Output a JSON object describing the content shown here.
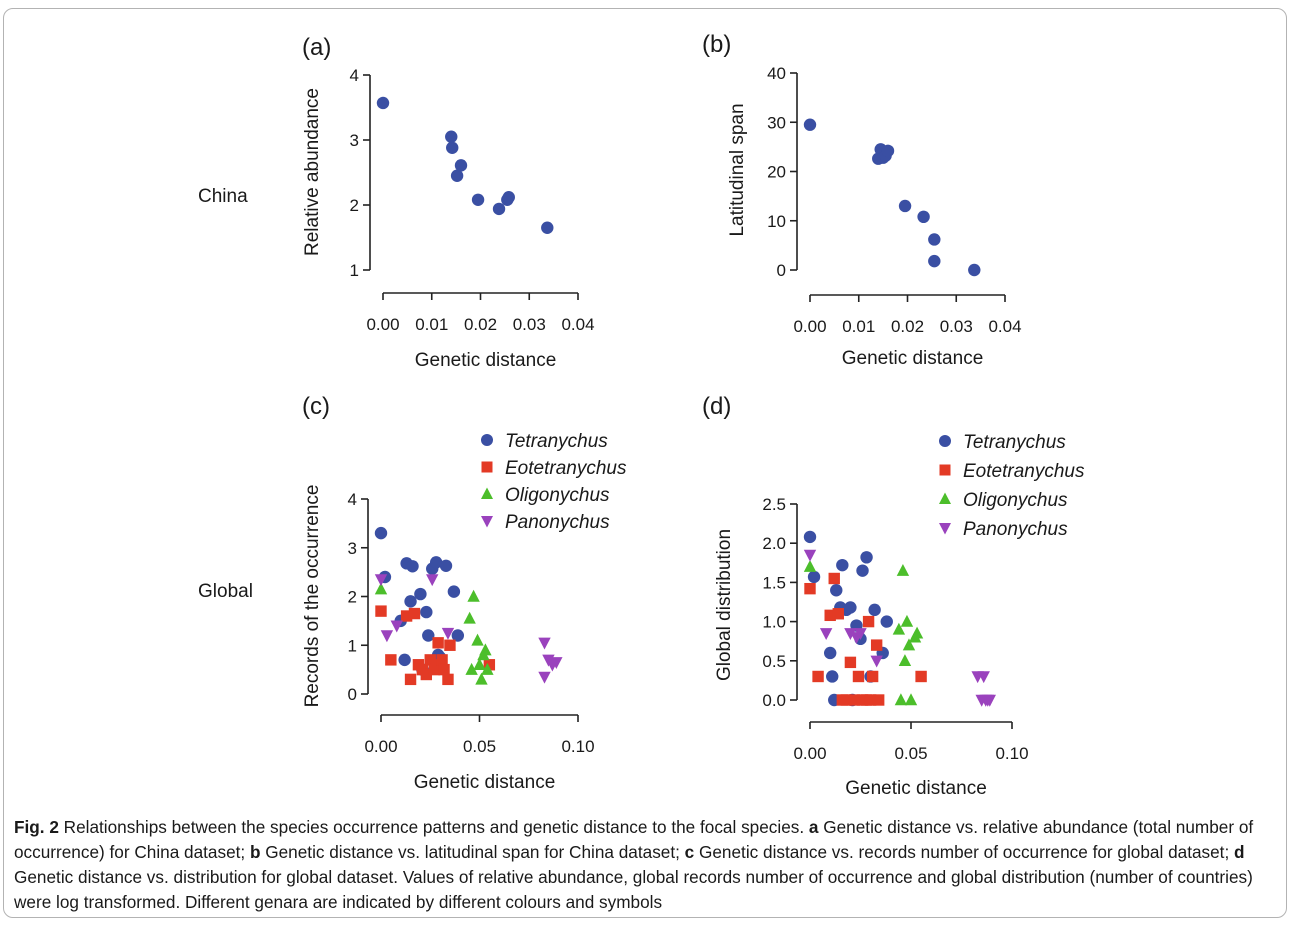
{
  "colors": {
    "tetranychus": "#3a4fa3",
    "eotetranychus": "#e33a25",
    "oligonychus": "#4cbe2b",
    "panonychus": "#9a42bd"
  },
  "row_labels": {
    "top": "China",
    "bottom": "Global"
  },
  "caption": {
    "fig_label": "Fig. 2",
    "parts": [
      {
        "b": false,
        "t": " Relationships between the species occurrence patterns and genetic distance to the focal species. "
      },
      {
        "b": true,
        "t": "a"
      },
      {
        "b": false,
        "t": " Genetic distance vs. relative abundance (total number of occurrence) for China dataset; "
      },
      {
        "b": true,
        "t": "b"
      },
      {
        "b": false,
        "t": " Genetic distance vs. latitudinal span for China dataset; "
      },
      {
        "b": true,
        "t": "c"
      },
      {
        "b": false,
        "t": " Genetic distance vs. records number of occurrence for global dataset; "
      },
      {
        "b": true,
        "t": "d"
      },
      {
        "b": false,
        "t": " Genetic distance vs. distribution for global dataset. Values of relative abundance, global records number of occurrence and global distribution (number of countries) were log transformed. Different genara are indicated by different colours and symbols"
      }
    ]
  },
  "chart_data": [
    {
      "panel": "(a)",
      "type": "scatter",
      "xlabel": "Genetic distance",
      "ylabel": "Relative abundance",
      "xlim": [
        0,
        0.04
      ],
      "ylim": [
        1,
        4
      ],
      "xticks": [
        0,
        0.01,
        0.02,
        0.03,
        0.04
      ],
      "xtick_labels": [
        "0.00",
        "0.01",
        "0.02",
        "0.03",
        "0.04"
      ],
      "yticks": [
        1,
        2,
        3,
        4
      ],
      "ytick_labels": [
        "1",
        "2",
        "3",
        "4"
      ],
      "series": [
        {
          "color": "tetranychus",
          "marker": "circle",
          "points": [
            [
              0,
              3.57
            ],
            [
              0.014,
              3.05
            ],
            [
              0.0142,
              2.88
            ],
            [
              0.0152,
              2.45
            ],
            [
              0.016,
              2.61
            ],
            [
              0.0195,
              2.08
            ],
            [
              0.0238,
              1.94
            ],
            [
              0.0255,
              2.08
            ],
            [
              0.0258,
              2.12
            ],
            [
              0.0337,
              1.65
            ]
          ]
        }
      ]
    },
    {
      "panel": "(b)",
      "type": "scatter",
      "xlabel": "Genetic distance",
      "ylabel": "Latitudinal span",
      "xlim": [
        0,
        0.04
      ],
      "ylim": [
        0,
        40
      ],
      "xticks": [
        0,
        0.01,
        0.02,
        0.03,
        0.04
      ],
      "xtick_labels": [
        "0.00",
        "0.01",
        "0.02",
        "0.03",
        "0.04"
      ],
      "yticks": [
        0,
        10,
        20,
        30,
        40
      ],
      "ytick_labels": [
        "0",
        "10",
        "20",
        "30",
        "40"
      ],
      "series": [
        {
          "color": "tetranychus",
          "marker": "circle",
          "points": [
            [
              0,
              29.5
            ],
            [
              0.014,
              22.6
            ],
            [
              0.0145,
              24.5
            ],
            [
              0.015,
              22.8
            ],
            [
              0.0155,
              23.2
            ],
            [
              0.016,
              24.2
            ],
            [
              0.0195,
              13
            ],
            [
              0.0233,
              10.8
            ],
            [
              0.0255,
              6.2
            ],
            [
              0.0255,
              1.8
            ],
            [
              0.0337,
              0
            ]
          ]
        }
      ]
    },
    {
      "panel": "(c)",
      "type": "scatter",
      "xlabel": "Genetic distance",
      "ylabel": "Records of the occurrence",
      "xlim": [
        0,
        0.1
      ],
      "ylim": [
        0,
        4
      ],
      "xticks": [
        0,
        0.05,
        0.1
      ],
      "xtick_labels": [
        "0.00",
        "0.05",
        "0.10"
      ],
      "yticks": [
        0,
        1,
        2,
        3,
        4
      ],
      "ytick_labels": [
        "0",
        "1",
        "2",
        "3",
        "4"
      ],
      "series": [
        {
          "name": "Tetranychus",
          "color": "tetranychus",
          "marker": "circle",
          "points": [
            [
              0,
              3.3
            ],
            [
              0.002,
              2.4
            ],
            [
              0.01,
              1.5
            ],
            [
              0.012,
              0.7
            ],
            [
              0.013,
              2.68
            ],
            [
              0.015,
              1.9
            ],
            [
              0.016,
              2.62
            ],
            [
              0.02,
              2.05
            ],
            [
              0.021,
              0.5
            ],
            [
              0.023,
              1.68
            ],
            [
              0.024,
              1.2
            ],
            [
              0.026,
              2.57
            ],
            [
              0.028,
              2.7
            ],
            [
              0.029,
              0.8
            ],
            [
              0.03,
              0.75
            ],
            [
              0.033,
              2.63
            ],
            [
              0.037,
              2.1
            ],
            [
              0.039,
              1.2
            ]
          ]
        },
        {
          "name": "Eotetranychus",
          "color": "eotetranychus",
          "marker": "square",
          "points": [
            [
              0,
              1.7
            ],
            [
              0.005,
              0.7
            ],
            [
              0.013,
              1.6
            ],
            [
              0.015,
              0.3
            ],
            [
              0.017,
              1.65
            ],
            [
              0.019,
              0.6
            ],
            [
              0.021,
              0.5
            ],
            [
              0.023,
              0.4
            ],
            [
              0.025,
              0.7
            ],
            [
              0.027,
              0.5
            ],
            [
              0.028,
              0.6
            ],
            [
              0.029,
              1.05
            ],
            [
              0.031,
              0.7
            ],
            [
              0.032,
              0.5
            ],
            [
              0.034,
              0.3
            ],
            [
              0.035,
              1.0
            ],
            [
              0.055,
              0.6
            ]
          ]
        },
        {
          "name": "Oligonychus",
          "color": "oligonychus",
          "marker": "triangle-up",
          "points": [
            [
              0,
              2.15
            ],
            [
              0.045,
              1.55
            ],
            [
              0.046,
              0.5
            ],
            [
              0.047,
              2.0
            ],
            [
              0.049,
              1.1
            ],
            [
              0.05,
              0.6
            ],
            [
              0.051,
              0.3
            ],
            [
              0.052,
              0.8
            ],
            [
              0.053,
              0.9
            ],
            [
              0.054,
              0.5
            ]
          ]
        },
        {
          "name": "Panonychus",
          "color": "panonychus",
          "marker": "triangle-down",
          "points": [
            [
              0,
              2.35
            ],
            [
              0.003,
              1.2
            ],
            [
              0.008,
              1.4
            ],
            [
              0.026,
              2.35
            ],
            [
              0.034,
              1.25
            ],
            [
              0.083,
              1.05
            ],
            [
              0.083,
              0.35
            ],
            [
              0.085,
              0.7
            ],
            [
              0.087,
              0.6
            ],
            [
              0.089,
              0.65
            ]
          ]
        }
      ]
    },
    {
      "panel": "(d)",
      "type": "scatter",
      "xlabel": "Genetic distance",
      "ylabel": "Global distribution",
      "xlim": [
        0,
        0.1
      ],
      "ylim": [
        0,
        2.5
      ],
      "xticks": [
        0,
        0.05,
        0.1
      ],
      "xtick_labels": [
        "0.00",
        "0.05",
        "0.10"
      ],
      "yticks": [
        0,
        0.5,
        1,
        1.5,
        2,
        2.5
      ],
      "ytick_labels": [
        "0.0",
        "0.5",
        "1.0",
        "1.5",
        "2.0",
        "2.5"
      ],
      "series": [
        {
          "name": "Tetranychus",
          "color": "tetranychus",
          "marker": "circle",
          "points": [
            [
              0,
              2.08
            ],
            [
              0.002,
              1.57
            ],
            [
              0.01,
              0.6
            ],
            [
              0.011,
              0.3
            ],
            [
              0.012,
              0
            ],
            [
              0.013,
              1.4
            ],
            [
              0.015,
              1.18
            ],
            [
              0.016,
              1.72
            ],
            [
              0.018,
              1.15
            ],
            [
              0.02,
              1.18
            ],
            [
              0.021,
              0
            ],
            [
              0.023,
              0.95
            ],
            [
              0.025,
              0.78
            ],
            [
              0.026,
              1.65
            ],
            [
              0.028,
              1.82
            ],
            [
              0.03,
              0.3
            ],
            [
              0.032,
              1.15
            ],
            [
              0.036,
              0.6
            ],
            [
              0.038,
              1.0
            ]
          ]
        },
        {
          "name": "Eotetranychus",
          "color": "eotetranychus",
          "marker": "square",
          "points": [
            [
              0,
              1.42
            ],
            [
              0.004,
              0.3
            ],
            [
              0.01,
              1.08
            ],
            [
              0.012,
              1.55
            ],
            [
              0.014,
              1.1
            ],
            [
              0.016,
              0
            ],
            [
              0.018,
              0
            ],
            [
              0.02,
              0.48
            ],
            [
              0.022,
              0
            ],
            [
              0.024,
              0.3
            ],
            [
              0.026,
              0
            ],
            [
              0.028,
              0
            ],
            [
              0.029,
              1.0
            ],
            [
              0.03,
              0
            ],
            [
              0.031,
              0.3
            ],
            [
              0.033,
              0.7
            ],
            [
              0.034,
              0
            ],
            [
              0.055,
              0.3
            ]
          ]
        },
        {
          "name": "Oligonychus",
          "color": "oligonychus",
          "marker": "triangle-up",
          "points": [
            [
              0,
              1.7
            ],
            [
              0.044,
              0.9
            ],
            [
              0.045,
              0
            ],
            [
              0.046,
              1.65
            ],
            [
              0.047,
              0.5
            ],
            [
              0.048,
              1.0
            ],
            [
              0.049,
              0.7
            ],
            [
              0.05,
              0
            ],
            [
              0.052,
              0.8
            ],
            [
              0.053,
              0.85
            ]
          ]
        },
        {
          "name": "Panonychus",
          "color": "panonychus",
          "marker": "triangle-down",
          "points": [
            [
              0,
              1.85
            ],
            [
              0.008,
              0.85
            ],
            [
              0.02,
              0.85
            ],
            [
              0.023,
              0.8
            ],
            [
              0.025,
              0.85
            ],
            [
              0.033,
              0.5
            ],
            [
              0.083,
              0.3
            ],
            [
              0.085,
              0
            ],
            [
              0.086,
              0.3
            ],
            [
              0.087,
              0
            ],
            [
              0.088,
              0
            ],
            [
              0.089,
              0
            ]
          ]
        }
      ]
    }
  ]
}
